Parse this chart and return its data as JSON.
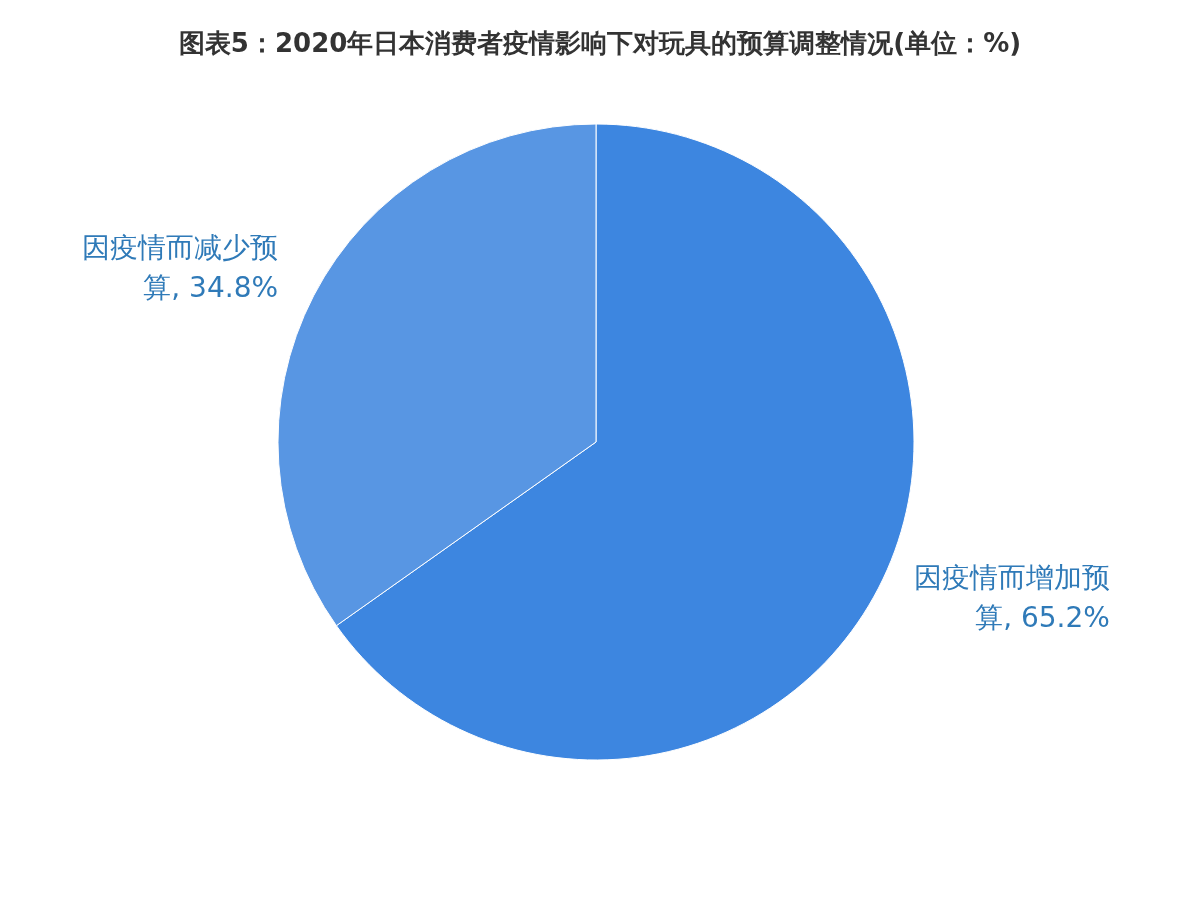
{
  "chart_data": {
    "type": "pie",
    "title": "图表5：2020年日本消费者疫情影响下对玩具的预算调整情况(单位：%)",
    "categories": [
      "因疫情而增加预算",
      "因疫情而减少预算"
    ],
    "values": [
      65.2,
      34.8
    ],
    "value_labels": [
      ", 65.2%",
      ", 34.8%"
    ],
    "colors": [
      "#3d86e0",
      "#5896e3"
    ]
  }
}
